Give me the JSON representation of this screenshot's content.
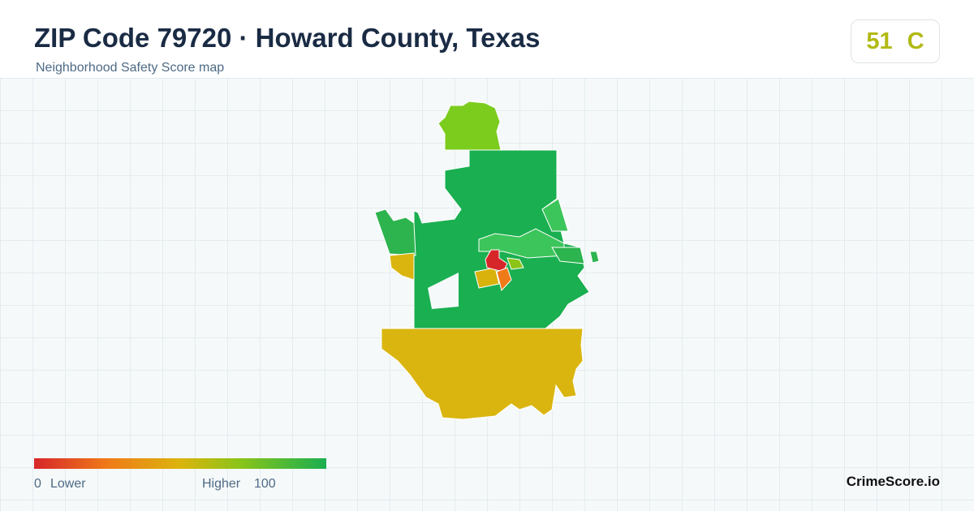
{
  "header": {
    "title": "ZIP Code 79720 · Howard County, Texas",
    "subtitle": "Neighborhood Safety Score map"
  },
  "score": {
    "value": 51,
    "grade": "C"
  },
  "legend": {
    "min": 0,
    "min_label": "Lower",
    "max_label": "Higher",
    "max": 100
  },
  "brand": "CrimeScore.io"
}
